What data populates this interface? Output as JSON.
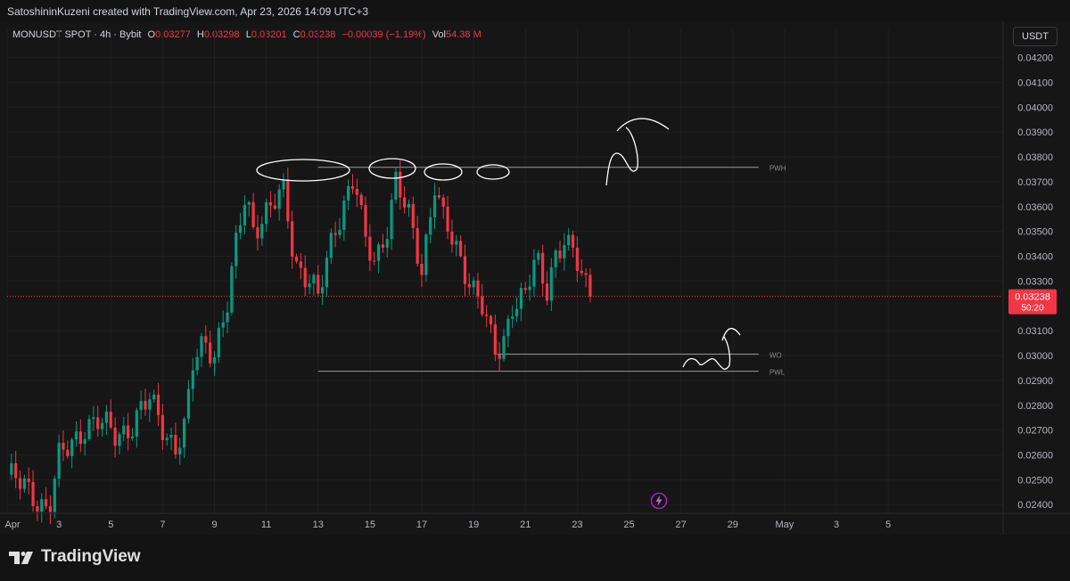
{
  "header": {
    "attribution": "SatoshininKuzeni created with TradingView.com, Apr 23, 2026 14:09 UTC+3"
  },
  "legend": {
    "symbol": "MONUSDT SPOT · 4h · Bybit",
    "o_label": "O",
    "o_value": "0.03277",
    "h_label": "H",
    "h_value": "0.03298",
    "l_label": "L",
    "l_value": "0.03201",
    "c_label": "C",
    "c_value": "0.03238",
    "change": "−0.00039 (−1.19%)",
    "vol_label": "Vol",
    "vol_value": "54.38 M"
  },
  "currency_button": "USDT",
  "brand": "TradingView",
  "colors": {
    "up": "#089981",
    "down": "#f23645",
    "grid": "#1f1f1f",
    "text": "#d1d4dc",
    "axis_text": "#b2b5be",
    "price_badge": "#f23645"
  },
  "chart_data": {
    "type": "candlestick",
    "symbol": "MONUSDT",
    "timeframe": "4h",
    "y_tick_labels": [
      "0.04200",
      "0.04100",
      "0.04000",
      "0.03900",
      "0.03800",
      "0.03700",
      "0.03600",
      "0.03500",
      "0.03400",
      "0.03300",
      "0.03100",
      "0.03000",
      "0.02900",
      "0.02800",
      "0.02700",
      "0.02600",
      "0.02500",
      "0.02400"
    ],
    "y_ticks": [
      0.042,
      0.041,
      0.04,
      0.039,
      0.038,
      0.037,
      0.036,
      0.035,
      0.034,
      0.033,
      0.031,
      0.03,
      0.029,
      0.028,
      0.027,
      0.026,
      0.025,
      0.024
    ],
    "ylim": [
      0.02365,
      0.04245
    ],
    "x_labels": [
      {
        "day": 1,
        "text": "Apr"
      },
      {
        "day": 3,
        "text": "3"
      },
      {
        "day": 5,
        "text": "5"
      },
      {
        "day": 7,
        "text": "7"
      },
      {
        "day": 9,
        "text": "9"
      },
      {
        "day": 11,
        "text": "11"
      },
      {
        "day": 13,
        "text": "13"
      },
      {
        "day": 15,
        "text": "15"
      },
      {
        "day": 17,
        "text": "17"
      },
      {
        "day": 19,
        "text": "19"
      },
      {
        "day": 21,
        "text": "21"
      },
      {
        "day": 23,
        "text": "23"
      },
      {
        "day": 25,
        "text": "25"
      },
      {
        "day": 27,
        "text": "27"
      },
      {
        "day": 29,
        "text": "29"
      },
      {
        "day": 31,
        "text": "May"
      },
      {
        "day": 33,
        "text": "3"
      },
      {
        "day": 35,
        "text": "5"
      }
    ],
    "xlim": [
      1.0,
      39.4
    ],
    "last_price": "0.03238",
    "countdown": "50:20",
    "last_price_value": 0.03238,
    "levels": [
      {
        "name": "PWH",
        "value": 0.03758,
        "x_start": 13.0,
        "x_end": 30.0
      },
      {
        "name": "WO",
        "value": 0.03006,
        "x_start": 19.9,
        "x_end": 30.0
      },
      {
        "name": "PWL",
        "value": 0.02937,
        "x_start": 13.0,
        "x_end": 30.0
      }
    ],
    "anchors": [
      {
        "day": 1.0,
        "close": 0.0252
      },
      {
        "day": 1.9,
        "close": 0.0245
      },
      {
        "day": 2.6,
        "close": 0.0238
      },
      {
        "day": 3.0,
        "close": 0.0258
      },
      {
        "day": 3.6,
        "close": 0.0266
      },
      {
        "day": 4.0,
        "close": 0.0272
      },
      {
        "day": 4.5,
        "close": 0.0273
      },
      {
        "day": 5.2,
        "close": 0.0268
      },
      {
        "day": 5.8,
        "close": 0.0272
      },
      {
        "day": 6.5,
        "close": 0.0282
      },
      {
        "day": 7.0,
        "close": 0.0272
      },
      {
        "day": 7.5,
        "close": 0.0263
      },
      {
        "day": 7.9,
        "close": 0.0272
      },
      {
        "day": 8.2,
        "close": 0.0298
      },
      {
        "day": 8.6,
        "close": 0.0306
      },
      {
        "day": 9.0,
        "close": 0.0302
      },
      {
        "day": 9.5,
        "close": 0.032
      },
      {
        "day": 9.9,
        "close": 0.0348
      },
      {
        "day": 10.2,
        "close": 0.0366
      },
      {
        "day": 10.5,
        "close": 0.0352
      },
      {
        "day": 11.1,
        "close": 0.0358
      },
      {
        "day": 11.7,
        "close": 0.0366
      },
      {
        "day": 12.1,
        "close": 0.0338
      },
      {
        "day": 12.7,
        "close": 0.033
      },
      {
        "day": 13.0,
        "close": 0.0322
      },
      {
        "day": 13.6,
        "close": 0.035
      },
      {
        "day": 14.0,
        "close": 0.0362
      },
      {
        "day": 14.4,
        "close": 0.0372
      },
      {
        "day": 14.8,
        "close": 0.0345
      },
      {
        "day": 15.2,
        "close": 0.0338
      },
      {
        "day": 15.6,
        "close": 0.035
      },
      {
        "day": 16.0,
        "close": 0.037
      },
      {
        "day": 16.5,
        "close": 0.0355
      },
      {
        "day": 17.0,
        "close": 0.0335
      },
      {
        "day": 17.5,
        "close": 0.037
      },
      {
        "day": 17.8,
        "close": 0.0355
      },
      {
        "day": 18.4,
        "close": 0.034
      },
      {
        "day": 18.9,
        "close": 0.033
      },
      {
        "day": 19.3,
        "close": 0.0322
      },
      {
        "day": 19.8,
        "close": 0.03
      },
      {
        "day": 20.1,
        "close": 0.0302
      },
      {
        "day": 20.5,
        "close": 0.0322
      },
      {
        "day": 21.0,
        "close": 0.0325
      },
      {
        "day": 21.4,
        "close": 0.0338
      },
      {
        "day": 21.8,
        "close": 0.0325
      },
      {
        "day": 22.1,
        "close": 0.034
      },
      {
        "day": 22.5,
        "close": 0.0348
      },
      {
        "day": 23.0,
        "close": 0.0336
      },
      {
        "day": 23.45,
        "close": 0.03238
      }
    ]
  }
}
